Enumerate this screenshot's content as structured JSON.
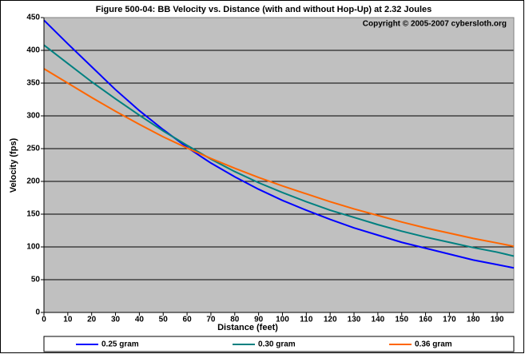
{
  "chart_data": {
    "type": "line",
    "title": "Figure 500-04:  BB Velocity vs. Distance (with and without Hop-Up) at 2.32 Joules",
    "annotation": "Copyright © 2005-2007 cybersloth.org",
    "xlabel": "Distance (feet)",
    "ylabel": "Velocity (fps)",
    "x": [
      0,
      10,
      20,
      30,
      40,
      50,
      60,
      70,
      80,
      90,
      100,
      110,
      120,
      130,
      140,
      150,
      160,
      170,
      180,
      190,
      197
    ],
    "series": [
      {
        "name": "0.25 gram",
        "color": "#0000ff",
        "values": [
          446,
          410,
          375,
          340,
          308,
          279,
          252,
          228,
          207,
          188,
          171,
          156,
          142,
          129,
          118,
          107,
          98,
          89,
          80,
          73,
          68
        ]
      },
      {
        "name": "0.30 gram",
        "color": "#008080",
        "values": [
          408,
          380,
          352,
          326,
          301,
          277,
          255,
          234,
          215,
          198,
          183,
          169,
          156,
          145,
          134,
          124,
          115,
          107,
          99,
          92,
          86
        ]
      },
      {
        "name": "0.36 gram",
        "color": "#ff6600",
        "values": [
          372,
          350,
          328,
          307,
          287,
          268,
          251,
          235,
          220,
          206,
          193,
          181,
          169,
          158,
          148,
          138,
          129,
          121,
          113,
          106,
          101
        ]
      }
    ],
    "xlim": [
      0,
      197
    ],
    "ylim": [
      0,
      450
    ],
    "xticks": [
      0,
      10,
      20,
      30,
      40,
      50,
      60,
      70,
      80,
      90,
      100,
      110,
      120,
      130,
      140,
      150,
      160,
      170,
      180,
      190
    ],
    "yticks": [
      0,
      50,
      100,
      150,
      200,
      250,
      300,
      350,
      400,
      450
    ],
    "grid": true,
    "legend": "bottom",
    "background": "#c0c0c0"
  }
}
